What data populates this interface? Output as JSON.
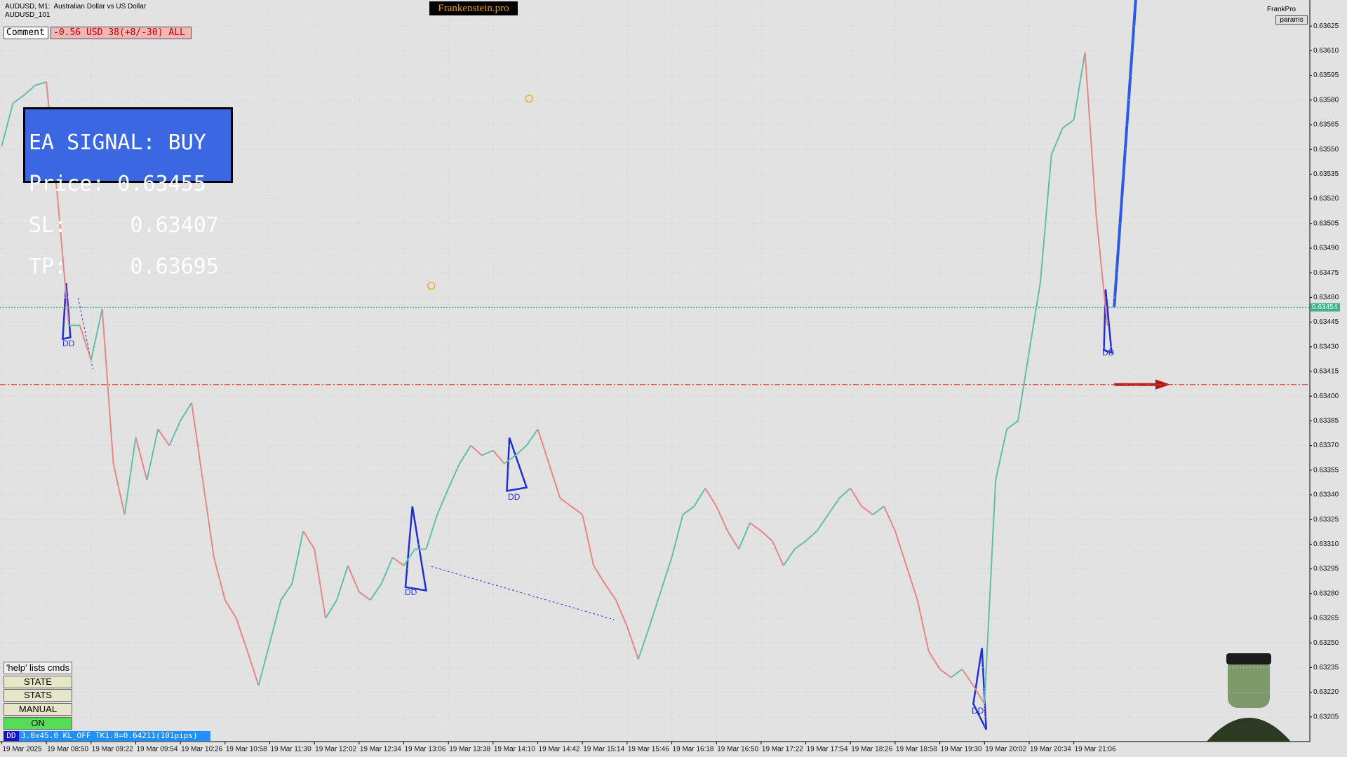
{
  "header": {
    "symbol": "AUDUSD, M1:  Australian Dollar vs US Dollar",
    "subtitle": "AUDUSD_101",
    "brand": "Frankenstein.pro",
    "profile": "FrankPro",
    "params_button": "params"
  },
  "comment": {
    "label": "Comment",
    "value": "-0.56 USD 38(+8/-30) ALL"
  },
  "signal_panel": {
    "lines": [
      "EA SIGNAL: BUY",
      "Price: 0.63455",
      "SL:     0.63407",
      "TP:     0.63695"
    ]
  },
  "buttons": [
    "'help' lists cmds",
    "STATE",
    "STATS",
    "MANUAL",
    "ON"
  ],
  "status_bar": {
    "tag": "DD",
    "text": "3.0x45.0 KL_OFF TK1.8=0.64211(101pips)"
  },
  "annotations": [
    "DD",
    "DD",
    "DD",
    "DD",
    "DD"
  ],
  "chart_data": {
    "type": "line",
    "categories": [
      "19 Mar 2025",
      null,
      null,
      null,
      "19 Mar 08:50",
      null,
      null,
      null,
      "19 Mar 09:22",
      null,
      null,
      null,
      "19 Mar 09:54",
      null,
      null,
      null,
      "19 Mar 10:26",
      null,
      null,
      null,
      "19 Mar 10:58",
      null,
      null,
      null,
      "19 Mar 11:30",
      null,
      null,
      null,
      "19 Mar 12:02",
      null,
      null,
      null,
      "19 Mar 12:34",
      null,
      null,
      null,
      "19 Mar 13:06",
      null,
      null,
      null,
      "19 Mar 13:38",
      null,
      null,
      null,
      "19 Mar 14:10",
      null,
      null,
      null,
      "19 Mar 14:42",
      null,
      null,
      null,
      "19 Mar 15:14",
      null,
      null,
      null,
      "19 Mar 15:46",
      null,
      null,
      null,
      "19 Mar 16:18",
      null,
      null,
      null,
      "19 Mar 16:50",
      null,
      null,
      null,
      "19 Mar 17:22",
      null,
      null,
      null,
      "19 Mar 17:54",
      null,
      null,
      null,
      "19 Mar 18:26",
      null,
      null,
      null,
      "19 Mar 18:58",
      null,
      null,
      null,
      "19 Mar 19:30",
      null,
      null,
      null,
      "19 Mar 20:02",
      null,
      null,
      null,
      "19 Mar 20:34",
      null,
      null,
      null,
      "19 Mar 21:06",
      null,
      null,
      null
    ],
    "values": [
      0.63552,
      0.63578,
      0.63583,
      0.63589,
      0.63591,
      0.63521,
      0.63443,
      0.63443,
      0.63422,
      0.63453,
      0.63359,
      0.63328,
      0.63375,
      0.63349,
      0.6338,
      0.6337,
      0.63385,
      0.63396,
      0.63349,
      0.63302,
      0.63276,
      0.63265,
      0.63245,
      0.63224,
      0.6325,
      0.63276,
      0.63286,
      0.63318,
      0.63307,
      0.63265,
      0.63276,
      0.63297,
      0.63281,
      0.63276,
      0.63286,
      0.63302,
      0.63297,
      0.63307,
      0.63307,
      0.63328,
      0.63344,
      0.63359,
      0.6337,
      0.63364,
      0.63367,
      0.63359,
      0.63364,
      0.6337,
      0.6338,
      0.63359,
      0.63338,
      0.63333,
      0.63328,
      0.63297,
      0.63286,
      0.63276,
      0.6326,
      0.6324,
      0.6326,
      0.63281,
      0.63302,
      0.63328,
      0.63333,
      0.63344,
      0.63333,
      0.63318,
      0.63307,
      0.63323,
      0.63318,
      0.63312,
      0.63297,
      0.63307,
      0.63312,
      0.63318,
      0.63328,
      0.63338,
      0.63344,
      0.63333,
      0.63328,
      0.63333,
      0.63318,
      0.63297,
      0.63276,
      0.63245,
      0.63234,
      0.63229,
      0.63234,
      0.63224,
      0.63213,
      0.63349,
      0.6338,
      0.63385,
      0.63427,
      0.63469,
      0.63547,
      0.63563,
      0.63568,
      0.63609,
      0.6351,
      0.63443
    ],
    "up_color": "#5fbfa8",
    "down_color": "#e98585",
    "ylim": [
      0.6319,
      0.6364
    ],
    "yticks": [
      0.63625,
      {
        "value": 0.6361,
        "label": "0.63610"
      },
      0.63595,
      {
        "value": 0.6358,
        "label": "0.63580"
      },
      0.63565,
      {
        "value": 0.6355,
        "label": "0.63550"
      },
      0.63535,
      {
        "value": 0.6352,
        "label": "0.63520"
      },
      0.63505,
      {
        "value": 0.6349,
        "label": "0.63490"
      },
      0.63475,
      {
        "value": 0.6346,
        "label": "0.63460"
      },
      0.63445,
      {
        "value": 0.6343,
        "label": "0.63430"
      },
      0.63415,
      {
        "value": 0.634,
        "label": "0.63400"
      },
      0.63385,
      {
        "value": 0.6337,
        "label": "0.63370"
      },
      0.63355,
      {
        "value": 0.6334,
        "label": "0.63340"
      },
      0.63325,
      {
        "value": 0.6331,
        "label": "0.63310"
      },
      0.63295,
      {
        "value": 0.6328,
        "label": "0.63280"
      },
      0.63265,
      {
        "value": 0.6325,
        "label": "0.63250"
      },
      0.63235,
      {
        "value": 0.6322,
        "label": "0.63220"
      },
      0.63205
    ],
    "grid": true,
    "bid_line": 0.63454,
    "bid_color": "#3cb38a",
    "sl_line": 0.63407,
    "sl_color": "#e03030"
  }
}
